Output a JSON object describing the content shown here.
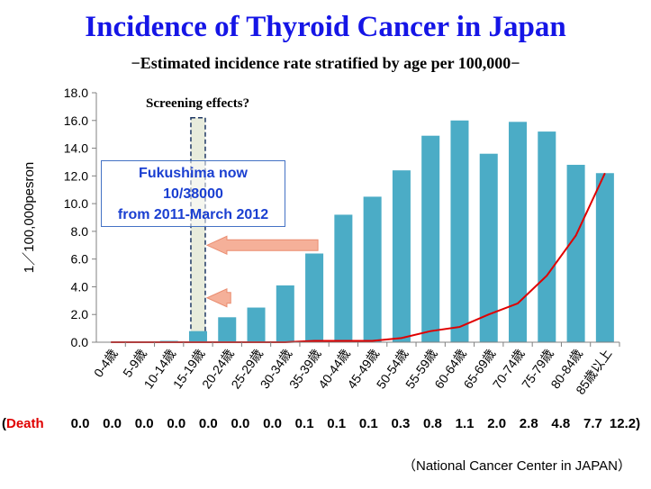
{
  "title": "Incidence of Thyroid Cancer in Japan",
  "subtitle": "−Estimated incidence rate stratified by age per 100,000−",
  "annotations": {
    "screening": "Screening effects?",
    "fukushima_lines": [
      "Fukushima now",
      "10/38000",
      "from 2011-March 2012"
    ]
  },
  "death_row": {
    "label_open": "(",
    "label_word": "Death",
    "values_text": [
      "0.0",
      "0.0",
      "0.0",
      "0.0",
      "0.0",
      "0.0",
      "0.0",
      "0.1",
      "0.1",
      "0.1",
      "0.3",
      "0.8",
      "1.1",
      "2.0",
      "2.8",
      "4.8",
      "7.7",
      "12.2)"
    ]
  },
  "source": "（National Cancer Center in JAPAN）",
  "colors": {
    "bar": "#4bacc6",
    "line": "#e00000",
    "title": "#1515e6",
    "screen_box": "#e8ecdc",
    "arrow": "#f4a88f"
  },
  "chart_data": {
    "type": "bar",
    "title": "Incidence of Thyroid Cancer in Japan",
    "subtitle": "−Estimated incidence rate stratified by age per 100,000−",
    "xlabel": "",
    "ylabel": "1／100,000pesron",
    "ylim": [
      0,
      18
    ],
    "yticks": [
      "0.0",
      "2.0",
      "4.0",
      "6.0",
      "8.0",
      "10.0",
      "12.0",
      "14.0",
      "16.0",
      "18.0"
    ],
    "grid": false,
    "categories": [
      "0-4歳",
      "5-9歳",
      "10-14歳",
      "15-19歳",
      "20-24歳",
      "25-29歳",
      "30-34歳",
      "35-39歳",
      "40-44歳",
      "45-49歳",
      "50-54歳",
      "55-59歳",
      "60-64歳",
      "65-69歳",
      "70-74歳",
      "75-79歳",
      "80-84歳",
      "85歳以上"
    ],
    "series": [
      {
        "type": "bar",
        "values": [
          0.0,
          0.0,
          0.1,
          0.8,
          1.8,
          2.5,
          4.1,
          6.4,
          9.2,
          10.5,
          12.4,
          14.9,
          16.0,
          13.6,
          15.9,
          15.2,
          12.8,
          12.2
        ]
      },
      {
        "type": "line",
        "values": [
          0.0,
          0.0,
          0.0,
          0.0,
          0.0,
          0.0,
          0.0,
          0.1,
          0.1,
          0.1,
          0.3,
          0.8,
          1.1,
          2.0,
          2.8,
          4.8,
          7.7,
          12.2
        ]
      }
    ],
    "screening_box": {
      "category": "15-19歳",
      "value": 16.2
    },
    "arrows": [
      {
        "from_category": "35-39歳",
        "to_category": "15-19歳",
        "value": 7.0
      },
      {
        "from_category": "20-24歳",
        "to_category": "15-19歳",
        "value": 3.2
      }
    ]
  }
}
